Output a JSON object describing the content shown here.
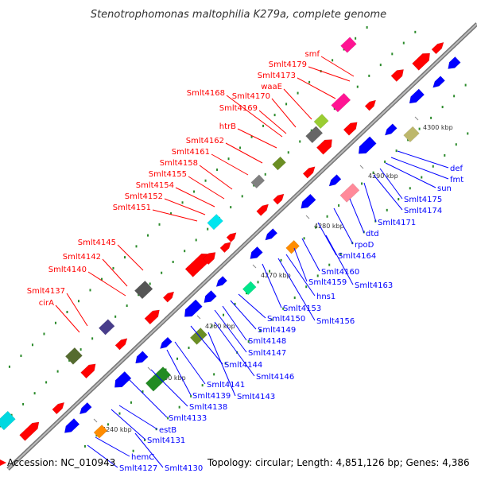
{
  "title": "Stenotrophomonas maltophilia K279a, complete genome",
  "footer": {
    "accession": "Accession: NC_010943",
    "topology": "Topology: circular; Length: 4,851,126 bp; Genes: 4,386"
  },
  "colors": {
    "forward": "#ff0000",
    "reverse": "#0000ff",
    "backbone": "#999999",
    "tick_mark": "#2a8a2a"
  },
  "ticks": [
    "4240 kbp",
    "4250 kbp",
    "4260 kbp",
    "4270 kbp",
    "4280 kbp",
    "4290 kbp",
    "4300 kbp"
  ],
  "forward_genes": [
    "smf",
    "Smlt4179",
    "Smlt4173",
    "waaE",
    "Smlt4168",
    "Smlt4170",
    "Smlt4169",
    "htrB",
    "Smlt4162",
    "Smlt4161",
    "Smlt4158",
    "Smlt4155",
    "Smlt4154",
    "Smlt4152",
    "Smlt4151",
    "Smlt4145",
    "Smlt4142",
    "Smlt4140",
    "Smlt4137",
    "cirA"
  ],
  "reverse_genes": [
    "def",
    "fmt",
    "sun",
    "Smlt4175",
    "Smlt4174",
    "Smlt4171",
    "dtd",
    "rpoD",
    "Smlt4164",
    "Smlt4160",
    "Smlt4159",
    "Smlt4163",
    "hns1",
    "Smlt4153",
    "Smlt4156",
    "Smlt4150",
    "Smlt4149",
    "Smlt4148",
    "Smlt4147",
    "Smlt4144",
    "Smlt4146",
    "Smlt4141",
    "Smlt4139",
    "Smlt4143",
    "Smlt4138",
    "Smlt4133",
    "estB",
    "Smlt4131",
    "hemC",
    "Smlt4127",
    "Smlt4130"
  ]
}
